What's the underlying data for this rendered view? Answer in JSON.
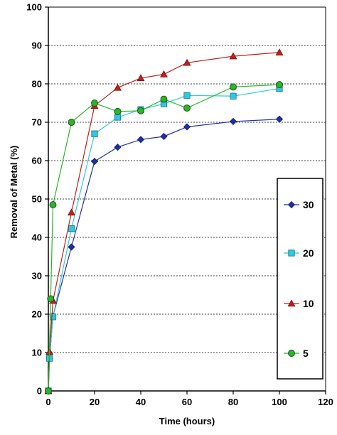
{
  "chart_data": {
    "type": "line",
    "title": "",
    "xlabel": "Time (hours)",
    "ylabel": "Removal of Metal (%)",
    "xlim": [
      0,
      120
    ],
    "ylim": [
      0,
      100
    ],
    "xticks": [
      0,
      20,
      40,
      60,
      80,
      100,
      120
    ],
    "yticks": [
      0,
      10,
      20,
      30,
      40,
      50,
      60,
      70,
      80,
      90,
      100
    ],
    "grid": "horizontal-dashed",
    "legend_position": "right",
    "series": [
      {
        "name": "30",
        "color": "#1f2fa8",
        "marker": "diamond",
        "x": [
          0,
          0.5,
          2,
          10,
          20,
          30,
          40,
          50,
          60,
          80,
          100
        ],
        "y": [
          0,
          8.5,
          19.5,
          37.5,
          59.8,
          63.5,
          65.5,
          66.3,
          68.8,
          70.2,
          70.8
        ]
      },
      {
        "name": "20",
        "color": "#2ec8e0",
        "marker": "square",
        "x": [
          0,
          0.5,
          2,
          10,
          20,
          30,
          40,
          50,
          60,
          80,
          100
        ],
        "y": [
          0,
          8.5,
          19.3,
          42.3,
          67.0,
          71.3,
          73.3,
          74.8,
          77.0,
          76.8,
          78.8
        ]
      },
      {
        "name": "10",
        "color": "#c0201a",
        "marker": "triangle",
        "x": [
          0,
          0.5,
          2,
          10,
          20,
          30,
          40,
          50,
          60,
          80,
          100
        ],
        "y": [
          0,
          10.2,
          23.5,
          46.5,
          74.3,
          79.0,
          81.5,
          82.5,
          85.5,
          87.2,
          88.2
        ]
      },
      {
        "name": "5",
        "color": "#22bb22",
        "marker": "circle",
        "x": [
          0,
          1,
          2,
          10,
          20,
          30,
          40,
          50,
          60,
          80,
          100
        ],
        "y": [
          0,
          24.0,
          48.5,
          70.0,
          75.0,
          72.8,
          73.0,
          76.0,
          73.7,
          79.2,
          79.8
        ]
      }
    ]
  }
}
